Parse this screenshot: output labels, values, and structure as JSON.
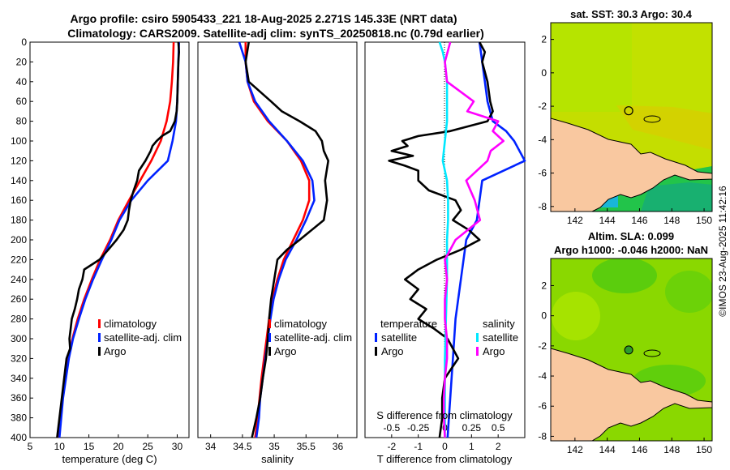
{
  "title_line1": "Argo profile: csiro 5905433_221 18-Aug-2025 2.271S 145.33E (NRT data)",
  "title_line2": "Climatology: CARS2009. Satellite-adj clim: synTS_20250818.nc (0.79d earlier)",
  "footer_stamp": "©IMOS 23-Aug-2025 11:42:16",
  "colors": {
    "climatology": "#ff0000",
    "satellite": "#0022ff",
    "argo": "#000000",
    "sal_diff": "#00e8ff",
    "temp_diff": "#ff00ff",
    "land": "#f9c8a0",
    "sst_ocean": "#aee800",
    "sla_ocean": "#7ed400"
  },
  "chart_data": [
    {
      "type": "line",
      "panel": "temperature",
      "xlabel": "temperature (deg C)",
      "xlim": [
        5,
        32
      ],
      "ylim": [
        400,
        0
      ],
      "xticks": [
        5,
        10,
        15,
        20,
        25,
        30
      ],
      "yticks": [
        0,
        20,
        40,
        60,
        80,
        100,
        120,
        140,
        160,
        180,
        200,
        220,
        240,
        260,
        280,
        300,
        320,
        340,
        360,
        380,
        400
      ],
      "legend": [
        "climatology",
        "satellite-adj. clim",
        "Argo"
      ],
      "series": [
        {
          "name": "climatology",
          "depth": [
            0,
            20,
            40,
            60,
            80,
            100,
            120,
            140,
            160,
            180,
            200,
            220,
            240,
            260,
            280,
            300,
            320,
            340,
            360,
            380,
            400
          ],
          "values": [
            29.4,
            29.3,
            29.1,
            28.8,
            28.2,
            27.2,
            25.6,
            23.7,
            21.8,
            20.0,
            18.6,
            16.9,
            15.5,
            14.2,
            13.1,
            12.2,
            11.5,
            11.0,
            10.5,
            10.2,
            9.9
          ]
        },
        {
          "name": "satellite-adj. clim",
          "depth": [
            0,
            20,
            40,
            60,
            80,
            100,
            120,
            140,
            160,
            180,
            200,
            220,
            240,
            260,
            280,
            300,
            320,
            340,
            360,
            380,
            400
          ],
          "values": [
            30.3,
            30.2,
            30.1,
            30.0,
            29.8,
            29.2,
            28.4,
            25.0,
            22.2,
            20.2,
            18.8,
            17.2,
            15.7,
            14.4,
            13.3,
            12.3,
            11.6,
            11.1,
            10.6,
            10.3,
            10.0
          ]
        },
        {
          "name": "Argo",
          "depth": [
            0,
            10,
            20,
            40,
            60,
            70,
            80,
            90,
            95,
            100,
            105,
            110,
            120,
            130,
            140,
            150,
            160,
            170,
            180,
            190,
            200,
            210,
            220,
            230,
            240,
            250,
            260,
            270,
            280,
            290,
            300,
            310,
            320,
            340,
            360,
            380,
            400
          ],
          "values": [
            30.2,
            30.3,
            30.2,
            30.1,
            30.0,
            29.9,
            29.6,
            28.8,
            27.4,
            26.5,
            25.8,
            25.5,
            24.6,
            23.5,
            23.2,
            22.6,
            22.1,
            21.8,
            21.6,
            20.9,
            19.7,
            18.3,
            16.8,
            14.2,
            13.9,
            13.3,
            13.0,
            12.6,
            12.1,
            11.9,
            11.7,
            11.8,
            11.2,
            10.8,
            10.4,
            10.0,
            9.6
          ]
        }
      ]
    },
    {
      "type": "line",
      "panel": "salinity",
      "xlabel": "salinity",
      "xlim": [
        33.8,
        36.3
      ],
      "ylim": [
        400,
        0
      ],
      "xticks": [
        34,
        34.5,
        35,
        35.5,
        36
      ],
      "legend": [
        "climatology",
        "satellite-adj. clim",
        "Argo"
      ],
      "series": [
        {
          "name": "climatology",
          "depth": [
            0,
            20,
            40,
            60,
            80,
            100,
            120,
            140,
            160,
            180,
            200,
            220,
            240,
            260,
            280,
            300,
            320,
            340,
            360,
            380,
            400
          ],
          "values": [
            34.55,
            34.55,
            34.58,
            34.68,
            34.9,
            35.2,
            35.42,
            35.55,
            35.55,
            35.45,
            35.3,
            35.15,
            35.05,
            34.97,
            34.92,
            34.88,
            34.84,
            34.8,
            34.77,
            34.74,
            34.7
          ]
        },
        {
          "name": "satellite-adj. clim",
          "depth": [
            0,
            20,
            40,
            60,
            80,
            100,
            120,
            140,
            160,
            180,
            200,
            220,
            240,
            260,
            280,
            300,
            320,
            340,
            360,
            380,
            400
          ],
          "values": [
            34.45,
            34.55,
            34.58,
            34.7,
            34.92,
            35.2,
            35.45,
            35.6,
            35.63,
            35.5,
            35.35,
            35.18,
            35.07,
            34.99,
            34.94,
            34.9,
            34.86,
            34.82,
            34.78,
            34.76,
            34.72
          ]
        },
        {
          "name": "Argo",
          "depth": [
            0,
            20,
            40,
            60,
            70,
            80,
            90,
            100,
            110,
            120,
            140,
            160,
            180,
            200,
            210,
            220,
            240,
            260,
            280,
            300,
            320,
            340,
            360,
            380,
            400
          ],
          "values": [
            34.6,
            34.55,
            34.6,
            34.95,
            35.12,
            35.4,
            35.65,
            35.75,
            35.78,
            35.85,
            35.8,
            35.83,
            35.78,
            35.4,
            35.2,
            35.05,
            35.0,
            34.95,
            34.92,
            34.9,
            34.87,
            34.82,
            34.78,
            34.72,
            34.65
          ]
        }
      ]
    },
    {
      "type": "line",
      "panel": "differences",
      "xlabel": "T difference from climatology",
      "top_axis_label": "S difference from climatology",
      "xlim": [
        -3,
        3
      ],
      "top_xlim": [
        -0.75,
        0.75
      ],
      "ylim": [
        400,
        0
      ],
      "xticks": [
        -2,
        -1,
        0,
        1,
        2
      ],
      "top_xticks": [
        -0.5,
        -0.25,
        0,
        0.25,
        0.5
      ],
      "legend_headers": [
        "temperature",
        "salinity"
      ],
      "legend": [
        "satellite",
        "Argo",
        "satellite",
        "Argo"
      ],
      "series": [
        {
          "name": "temperature satellite",
          "depth": [
            0,
            20,
            40,
            60,
            80,
            90,
            100,
            120,
            140,
            160,
            180,
            200,
            240,
            280,
            320,
            360,
            400
          ],
          "values": [
            1.3,
            1.4,
            1.5,
            1.6,
            1.8,
            2.3,
            2.6,
            3.0,
            1.4,
            1.3,
            1.2,
            0.8,
            0.6,
            0.4,
            0.3,
            0.2,
            0.1
          ]
        },
        {
          "name": "temperature Argo",
          "depth": [
            0,
            10,
            20,
            40,
            60,
            70,
            80,
            90,
            95,
            100,
            105,
            110,
            115,
            120,
            125,
            130,
            140,
            150,
            160,
            170,
            180,
            190,
            200,
            210,
            220,
            230,
            240,
            250,
            260,
            270,
            280,
            290,
            300,
            310,
            320,
            340,
            360,
            380,
            400
          ],
          "values": [
            1.3,
            1.5,
            1.4,
            1.6,
            1.7,
            1.8,
            1.6,
            0.2,
            -1.0,
            -1.6,
            -1.4,
            -2.0,
            -1.2,
            -2.1,
            -1.5,
            -1.0,
            -1.0,
            -0.6,
            0.4,
            0.6,
            0.3,
            0.9,
            1.3,
            0.6,
            -0.3,
            -1.0,
            -1.5,
            -1.0,
            -1.3,
            -0.7,
            -1.0,
            -0.4,
            0.1,
            0.3,
            0.5,
            0.0,
            -0.1,
            -0.1,
            -0.2
          ]
        },
        {
          "name": "salinity satellite",
          "depth": [
            0,
            10,
            20,
            40,
            60,
            80,
            100,
            120,
            140,
            160,
            180,
            200,
            240,
            280,
            320,
            360,
            400
          ],
          "values": [
            -0.05,
            -0.02,
            0.0,
            0.02,
            0.02,
            0.02,
            0.0,
            -0.02,
            0.02,
            0.03,
            0.03,
            0.02,
            0.02,
            0.01,
            0.0,
            0.0,
            0.0
          ]
        },
        {
          "name": "salinity Argo",
          "depth": [
            0,
            20,
            40,
            60,
            70,
            80,
            90,
            100,
            110,
            120,
            140,
            160,
            180,
            200,
            220,
            240,
            260,
            280,
            300,
            320,
            340,
            360,
            380,
            400
          ],
          "values": [
            0.05,
            0.0,
            0.02,
            0.27,
            0.21,
            0.5,
            0.45,
            0.55,
            0.43,
            0.4,
            0.2,
            0.28,
            0.33,
            0.1,
            0.0,
            0.02,
            0.0,
            0.0,
            0.02,
            0.02,
            0.0,
            -0.01,
            -0.01,
            0.0
          ]
        }
      ]
    },
    {
      "type": "heatmap",
      "panel": "sst_map",
      "title": "sat. SST: 30.3 Argo: 30.4",
      "xlim": [
        140.5,
        150.5
      ],
      "ylim": [
        -8.3,
        3.0
      ],
      "xticks": [
        142,
        144,
        146,
        148,
        150
      ],
      "yticks": [
        2,
        0,
        -2,
        -4,
        -6,
        -8
      ],
      "argo_position": {
        "lon": 145.33,
        "lat": -2.271
      }
    },
    {
      "type": "heatmap",
      "panel": "sla_map",
      "title_line1": "Altim. SLA: 0.099",
      "title_line2": "Argo h1000: -0.046 h2000: NaN",
      "xlim": [
        140.5,
        150.5
      ],
      "ylim": [
        -8.3,
        3.8
      ],
      "xticks": [
        142,
        144,
        146,
        148,
        150
      ],
      "yticks": [
        2,
        0,
        -2,
        -4,
        -6,
        -8
      ],
      "argo_position": {
        "lon": 145.33,
        "lat": -2.271
      }
    }
  ]
}
